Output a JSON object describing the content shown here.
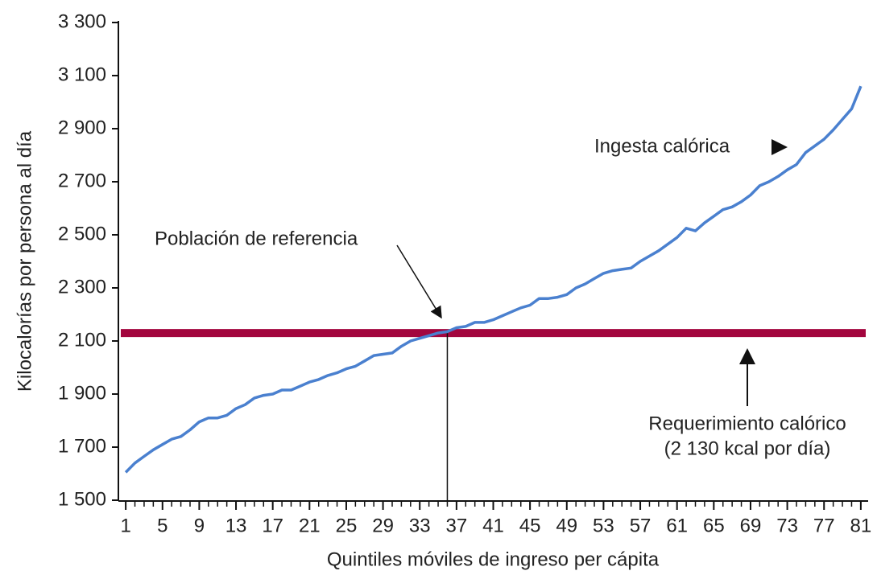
{
  "chart_data": {
    "type": "line",
    "y_label": "Kilocalorías por persona al día",
    "x_label": "Quintiles móviles de ingreso per cápita",
    "x": [
      1,
      2,
      3,
      4,
      5,
      6,
      7,
      8,
      9,
      10,
      11,
      12,
      13,
      14,
      15,
      16,
      17,
      18,
      19,
      20,
      21,
      22,
      23,
      24,
      25,
      26,
      27,
      28,
      29,
      30,
      31,
      32,
      33,
      34,
      35,
      36,
      37,
      38,
      39,
      40,
      41,
      42,
      43,
      44,
      45,
      46,
      47,
      48,
      49,
      50,
      51,
      52,
      53,
      54,
      55,
      56,
      57,
      58,
      59,
      60,
      61,
      62,
      63,
      64,
      65,
      66,
      67,
      68,
      69,
      70,
      71,
      72,
      73,
      74,
      75,
      76,
      77,
      78,
      79,
      80,
      81
    ],
    "series": [
      {
        "name": "Ingesta calórica",
        "color": "#4a80cf",
        "values": [
          1605,
          1640,
          1665,
          1690,
          1710,
          1730,
          1740,
          1765,
          1795,
          1810,
          1810,
          1820,
          1845,
          1860,
          1885,
          1895,
          1900,
          1915,
          1915,
          1930,
          1945,
          1955,
          1970,
          1980,
          1995,
          2005,
          2025,
          2045,
          2050,
          2055,
          2080,
          2100,
          2110,
          2120,
          2130,
          2135,
          2150,
          2155,
          2170,
          2170,
          2180,
          2195,
          2210,
          2225,
          2235,
          2260,
          2260,
          2265,
          2275,
          2300,
          2315,
          2335,
          2355,
          2365,
          2370,
          2375,
          2400,
          2420,
          2440,
          2465,
          2490,
          2525,
          2515,
          2545,
          2570,
          2595,
          2605,
          2625,
          2650,
          2685,
          2700,
          2720,
          2745,
          2765,
          2810,
          2835,
          2860,
          2895,
          2935,
          2975,
          3060
        ]
      }
    ],
    "xlim": [
      0.2,
      81.8
    ],
    "xticks": [
      1,
      5,
      9,
      13,
      17,
      21,
      25,
      29,
      33,
      37,
      41,
      45,
      49,
      53,
      57,
      61,
      65,
      69,
      73,
      77,
      81
    ],
    "ylim": [
      1500,
      3300
    ],
    "yticks": [
      {
        "value": 1500,
        "label": "1 500"
      },
      {
        "value": 1700,
        "label": "1 700"
      },
      {
        "value": 1900,
        "label": "1 900"
      },
      {
        "value": 2100,
        "label": "2 100"
      },
      {
        "value": 2300,
        "label": "2 300"
      },
      {
        "value": 2500,
        "label": "2 500"
      },
      {
        "value": 2700,
        "label": "2 700"
      },
      {
        "value": 2900,
        "label": "2 900"
      },
      {
        "value": 3100,
        "label": "3 100"
      },
      {
        "value": 3300,
        "label": "3 300"
      }
    ],
    "hline": {
      "value": 2130,
      "color": "#a3063e"
    },
    "vline": {
      "x": 36
    },
    "annotations": [
      "Ingesta calórica",
      "Población de referencia",
      "Requerimiento calórico",
      "(2 130 kcal por día)"
    ]
  }
}
